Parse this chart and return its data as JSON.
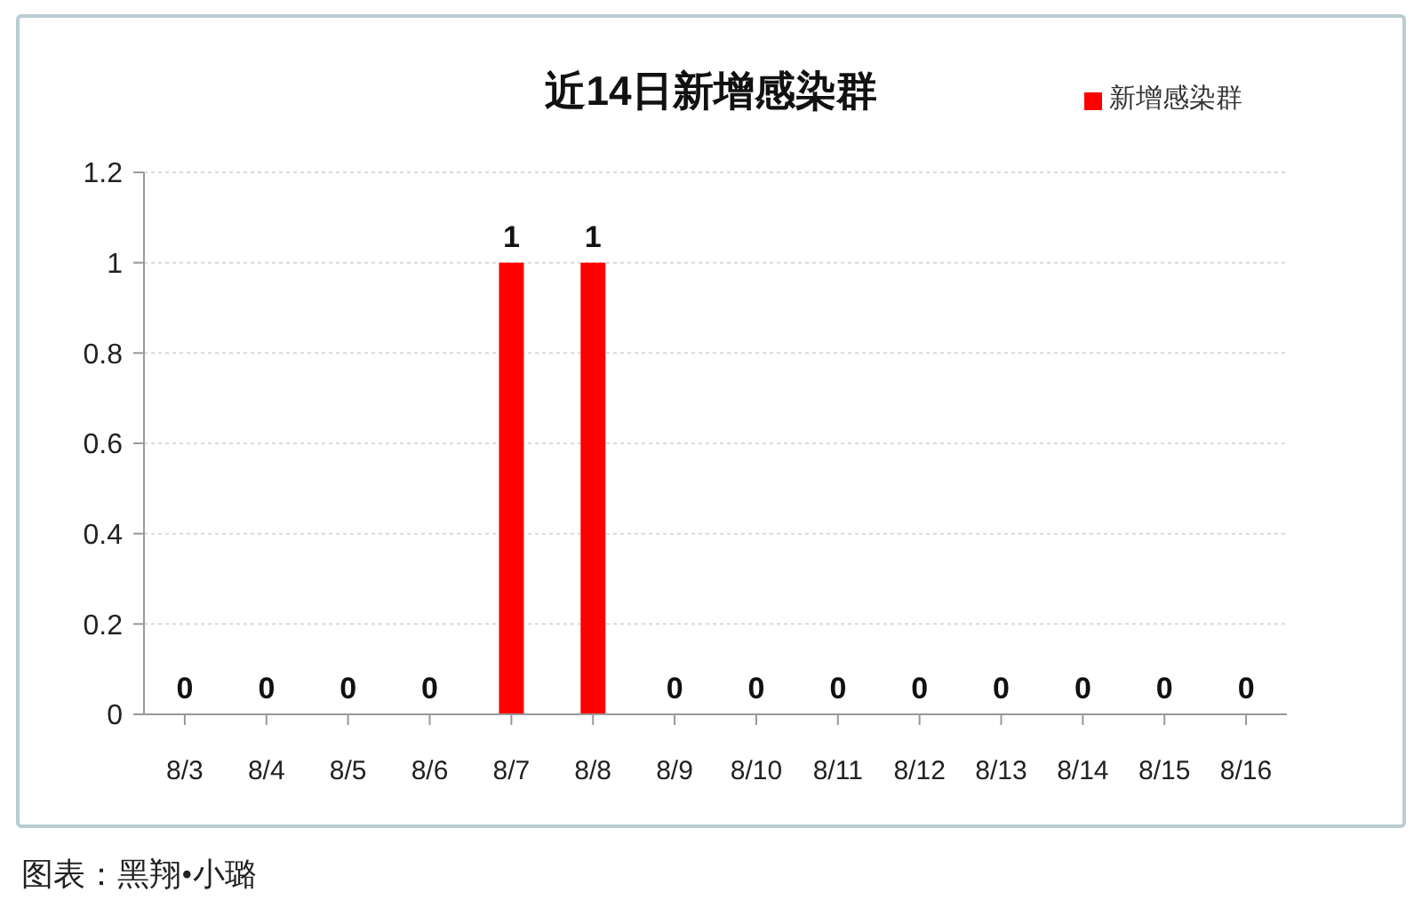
{
  "chart_data": {
    "type": "bar",
    "title": "近14日新增感染群",
    "categories": [
      "8/3",
      "8/4",
      "8/5",
      "8/6",
      "8/7",
      "8/8",
      "8/9",
      "8/10",
      "8/11",
      "8/12",
      "8/13",
      "8/14",
      "8/15",
      "8/16"
    ],
    "series": [
      {
        "name": "新增感染群",
        "color": "#ff0000",
        "values": [
          0,
          0,
          0,
          0,
          1,
          1,
          0,
          0,
          0,
          0,
          0,
          0,
          0,
          0
        ]
      }
    ],
    "ylim": [
      0,
      1.2
    ],
    "yticks": [
      0,
      0.2,
      0.4,
      0.6,
      0.8,
      1,
      1.2
    ],
    "grid": "y",
    "legend": "top right",
    "data_labels": true,
    "annotations": [
      "图表：黑翔•小璐"
    ]
  }
}
